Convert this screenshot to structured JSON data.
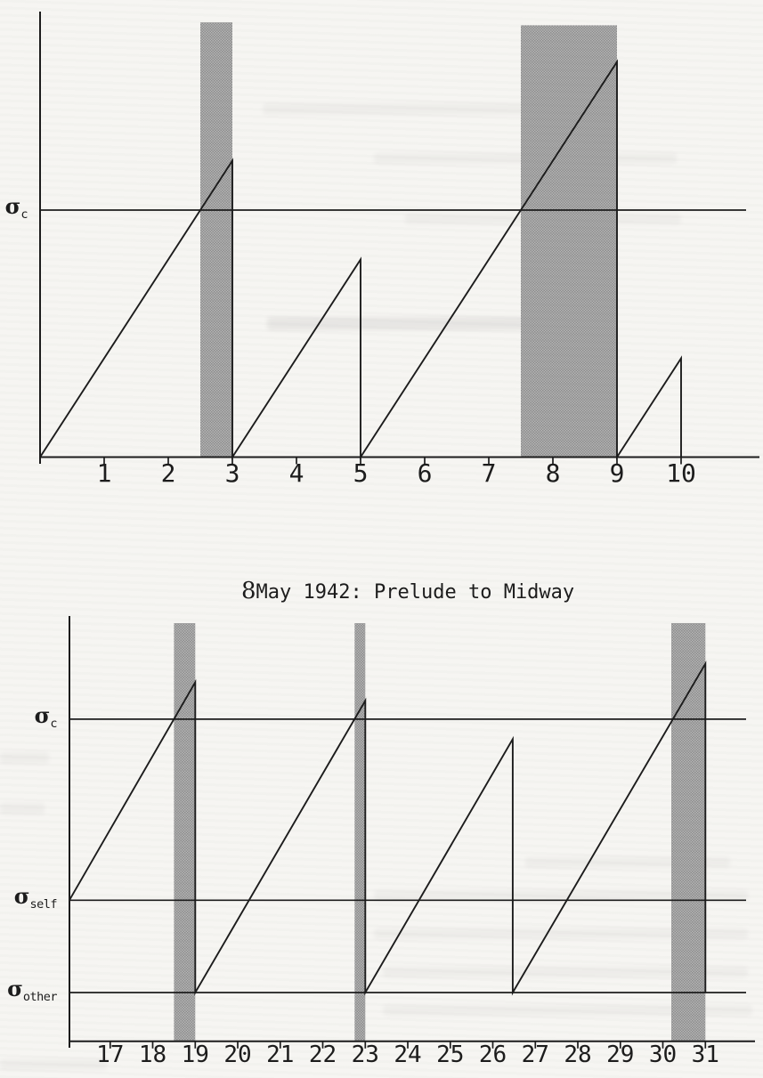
{
  "page": {
    "background_color": "#f6f5f2",
    "ink_color": "#1c1c1c",
    "band_fill_color": "#a2a2a2"
  },
  "chart_data": [
    {
      "id": "top",
      "type": "line",
      "title": "",
      "xlabel": "",
      "ylabel": "",
      "grid": false,
      "legend": null,
      "x_range": [
        0,
        11.2
      ],
      "y_axis_top": 4.5,
      "axis_y": 0,
      "x_ticks": [
        1,
        2,
        3,
        4,
        5,
        6,
        7,
        8,
        9,
        10
      ],
      "thresholds": [
        {
          "name": "sigma-c",
          "symbol": "σ",
          "subscript": "c",
          "value": 2.5
        }
      ],
      "series": [
        {
          "name": "tension-sawtooth",
          "points": [
            [
              0,
              0
            ],
            [
              3,
              3
            ],
            [
              3,
              0
            ],
            [
              5,
              2
            ],
            [
              5,
              0
            ],
            [
              9,
              4
            ],
            [
              9,
              0
            ],
            [
              10,
              1
            ],
            [
              10,
              0
            ]
          ]
        }
      ],
      "bands": [
        {
          "from": 2.5,
          "to": 3.0,
          "top": 4.4
        },
        {
          "from": 7.5,
          "to": 9.0,
          "top": 4.37
        }
      ]
    },
    {
      "id": "bottom",
      "type": "line",
      "title": "8May 1942: Prelude to Midway",
      "xlabel": "",
      "ylabel": "",
      "grid": false,
      "legend": null,
      "x_range": [
        16,
        32.2
      ],
      "y_axis_top": 5.1,
      "axis_y": -0.66,
      "x_ticks": [
        17,
        18,
        19,
        20,
        21,
        22,
        23,
        24,
        25,
        26,
        27,
        28,
        29,
        30,
        31
      ],
      "thresholds": [
        {
          "name": "sigma-c",
          "symbol": "σ",
          "subscript": "c",
          "value": 3.7
        },
        {
          "name": "sigma-self",
          "symbol": "σ",
          "subscript": "self",
          "value": 1.25
        },
        {
          "name": "sigma-other",
          "symbol": "σ",
          "subscript": "other",
          "value": 0
        }
      ],
      "series": [
        {
          "name": "tension-sawtooth",
          "points": [
            [
              16.04,
              1.25
            ],
            [
              19,
              4.2
            ],
            [
              19,
              0
            ],
            [
              23,
              3.95
            ],
            [
              23,
              0
            ],
            [
              26.47,
              3.43
            ],
            [
              26.47,
              0
            ],
            [
              31,
              4.45
            ],
            [
              31,
              0
            ]
          ]
        }
      ],
      "bands": [
        {
          "from": 18.5,
          "to": 19.0,
          "top": 5.0
        },
        {
          "from": 22.75,
          "to": 23.0,
          "top": 5.0
        },
        {
          "from": 30.2,
          "to": 31.0,
          "top": 5.0
        }
      ]
    }
  ]
}
